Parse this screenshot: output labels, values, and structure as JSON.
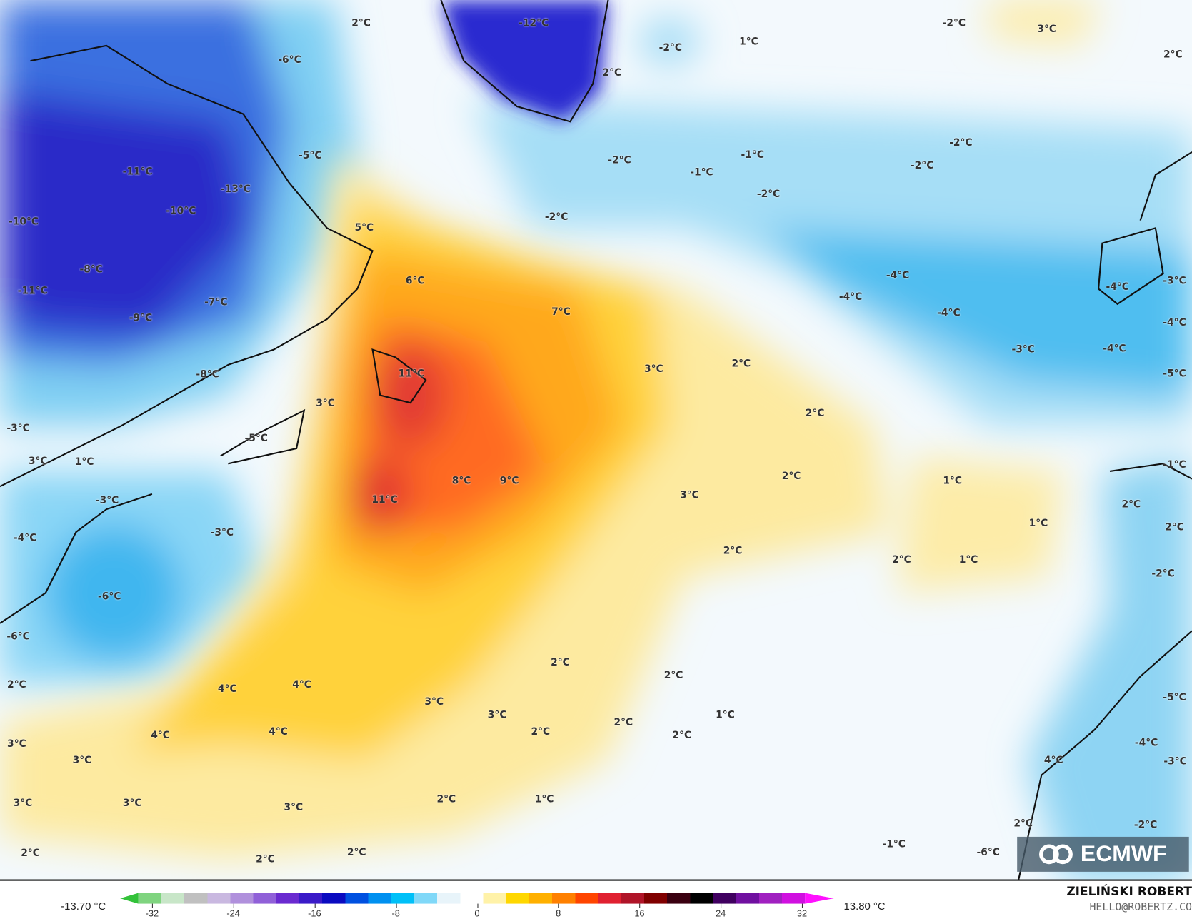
{
  "map": {
    "variable_unit": "°C",
    "labels": [
      "2°C",
      "-12°C",
      "-2°C",
      "3°C",
      "2°C",
      "-2°C",
      "1°C",
      "2°C",
      "-6°C",
      "-5°C",
      "-11°C",
      "-13°C",
      "-10°C",
      "-10°C",
      "-8°C",
      "-11°C",
      "-9°C",
      "-7°C",
      "-2°C",
      "-1°C",
      "-1°C",
      "-2°C",
      "-2°C",
      "-2°C",
      "-2°C",
      "5°C",
      "6°C",
      "7°C",
      "-4°C",
      "-4°C",
      "-4°C",
      "-4°C",
      "-3°C",
      "-4°C",
      "-3°C",
      "-4°C",
      "-5°C",
      "11°C",
      "3°C",
      "2°C",
      "-8°C",
      "3°C",
      "2°C",
      "-3°C",
      "-5°C",
      "3°C",
      "1°C",
      "8°C",
      "9°C",
      "2°C",
      "1°C",
      "-1°C",
      "11°C",
      "-3°C",
      "3°C",
      "2°C",
      "1°C",
      "-3°C",
      "-4°C",
      "2°C",
      "2°C",
      "2°C",
      "1°C",
      "-2°C",
      "-6°C",
      "-6°C",
      "2°C",
      "2°C",
      "-5°C",
      "2°C",
      "4°C",
      "4°C",
      "3°C",
      "3°C",
      "1°C",
      "2°C",
      "2°C",
      "2°C",
      "4°C",
      "4°C",
      "-4°C",
      "-3°C",
      "3°C",
      "3°C",
      "4°C",
      "3°C",
      "3°C",
      "3°C",
      "2°C",
      "1°C",
      "2°C",
      "-1°C",
      "-2°C",
      "-6°C",
      "2°C",
      "2°C",
      "2°C"
    ],
    "logo": "ECMWF"
  },
  "legend": {
    "min_label": "-13.70 °C",
    "max_label": "13.80 °C",
    "ticks": [
      "-32",
      "-24",
      "-16",
      "-8",
      "0",
      "8",
      "16",
      "24",
      "32"
    ],
    "range": [
      -32,
      32
    ],
    "colors": [
      "#33c23a",
      "#7fd47f",
      "#c8e6c8",
      "#c0c0c0",
      "#c9b8e0",
      "#b090dc",
      "#9060d8",
      "#6a2ad0",
      "#3a1ac8",
      "#0a0ac0",
      "#0050e0",
      "#0090f0",
      "#00c0f8",
      "#80d8f8",
      "#e8f4fa",
      "#ffffff",
      "#fff2a8",
      "#ffd700",
      "#ffb000",
      "#ff8000",
      "#ff4500",
      "#e02030",
      "#b01428",
      "#800000",
      "#3a0010",
      "#000000",
      "#400060",
      "#7010a0",
      "#a020c0",
      "#d010e0",
      "#ff10ff"
    ]
  },
  "credits": {
    "author": "ZIELIŃSKI ROBERT",
    "email": "HELLO@ROBERTZ.CO"
  }
}
